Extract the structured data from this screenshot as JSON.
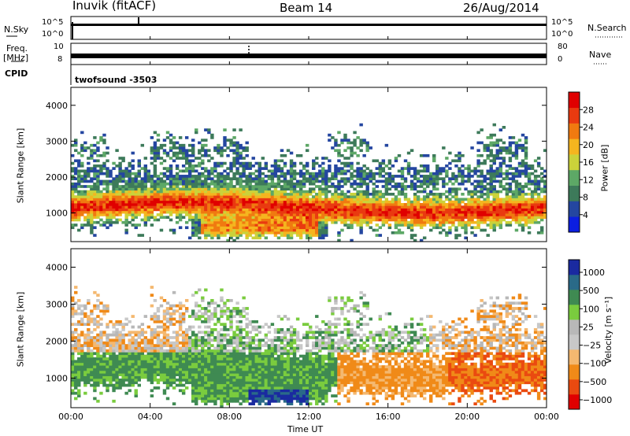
{
  "header": {
    "station": "Inuvik (fitACF)",
    "beam": "Beam 14",
    "date": "26/Aug/2014"
  },
  "strips": {
    "nsky_label": "N.Sky",
    "nsky_ticks": [
      "10^5",
      "10^0"
    ],
    "nsearch_label": "N.Search",
    "freq_label_1": "Freq.",
    "freq_label_2": "[MHz]",
    "freq_ticks": [
      "10",
      "8"
    ],
    "nave_ticks": [
      "80",
      "0"
    ],
    "nave_label": "Nave",
    "cpid_label": "CPID",
    "cpid_value": "twofsound -3503"
  },
  "colors": {
    "power_scale": [
      "#0b1ee0",
      "#2446a0",
      "#3d7a5a",
      "#5da866",
      "#cbd23a",
      "#f5b51f",
      "#f07a10",
      "#e93a10",
      "#e00000"
    ],
    "velocity_scale": [
      "#e00000",
      "#ea4a10",
      "#f08a18",
      "#f4b870",
      "#c8c8c8",
      "#b8b8b8",
      "#7acc3e",
      "#3f8a52",
      "#2a6a88",
      "#1a2aa0"
    ]
  },
  "chart_data": [
    {
      "type": "heatmap",
      "title": "",
      "xlabel": "Time UT",
      "ylabel": "Slant Range [km]",
      "x_ticks": [
        "00:00",
        "04:00",
        "08:00",
        "12:00",
        "16:00",
        "20:00",
        "00:00"
      ],
      "y_ticks": [
        "1000",
        "2000",
        "3000",
        "4000"
      ],
      "ylim": [
        200,
        4500
      ],
      "colorbar_label": "Power [dB]",
      "colorbar_ticks": [
        "4",
        "8",
        "12",
        "16",
        "20",
        "24",
        "28"
      ],
      "colorbar_range": [
        0,
        32
      ]
    },
    {
      "type": "heatmap",
      "title": "",
      "xlabel": "Time UT",
      "ylabel": "Slant Range [km]",
      "x_ticks": [
        "00:00",
        "04:00",
        "08:00",
        "12:00",
        "16:00",
        "20:00",
        "00:00"
      ],
      "y_ticks": [
        "1000",
        "2000",
        "3000",
        "4000"
      ],
      "ylim": [
        200,
        4500
      ],
      "colorbar_label": "Velocity [m s⁻¹]",
      "colorbar_ticks": [
        "1000",
        "500",
        "100",
        "25",
        "−25",
        "−100",
        "−500",
        "−1000"
      ]
    }
  ]
}
